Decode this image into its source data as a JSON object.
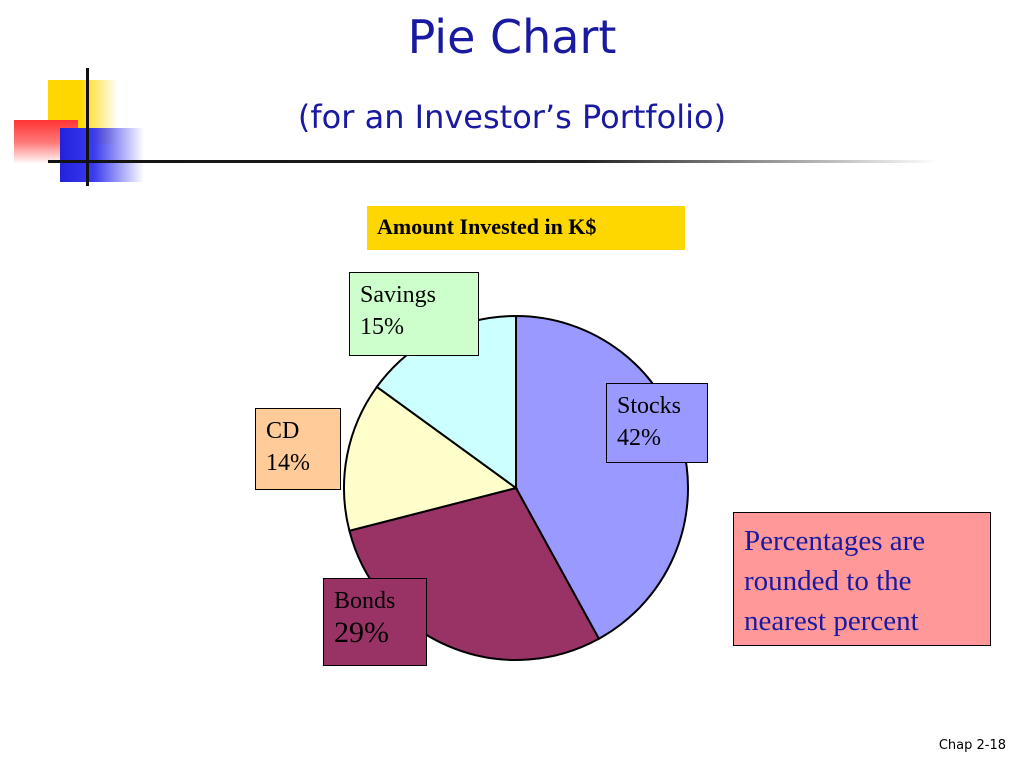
{
  "slide": {
    "title": "Pie Chart",
    "subtitle": "(for an Investor’s Portfolio)",
    "note": "Percentages are rounded to the nearest percent",
    "footer": "Chap 2-18"
  },
  "chart_data": {
    "type": "pie",
    "title": "Amount Invested in K$",
    "slices": [
      {
        "name": "Stocks",
        "percent": 42,
        "label": "42%",
        "color": "#9999ff"
      },
      {
        "name": "Bonds",
        "percent": 29,
        "label": "29%",
        "color": "#993366"
      },
      {
        "name": "CD",
        "percent": 14,
        "label": "14%",
        "color": "#ffffcc"
      },
      {
        "name": "Savings",
        "percent": 15,
        "label": "15%",
        "color": "#ccffff"
      }
    ],
    "label_box_colors": {
      "Stocks": "#9999ff",
      "Bonds": "#993366",
      "CD": "#ffcc99",
      "Savings": "#ccffcc"
    },
    "chart_title_background": "#ffd700",
    "note_background": "#ff9999",
    "note_text_color": "#1a1aa0"
  }
}
